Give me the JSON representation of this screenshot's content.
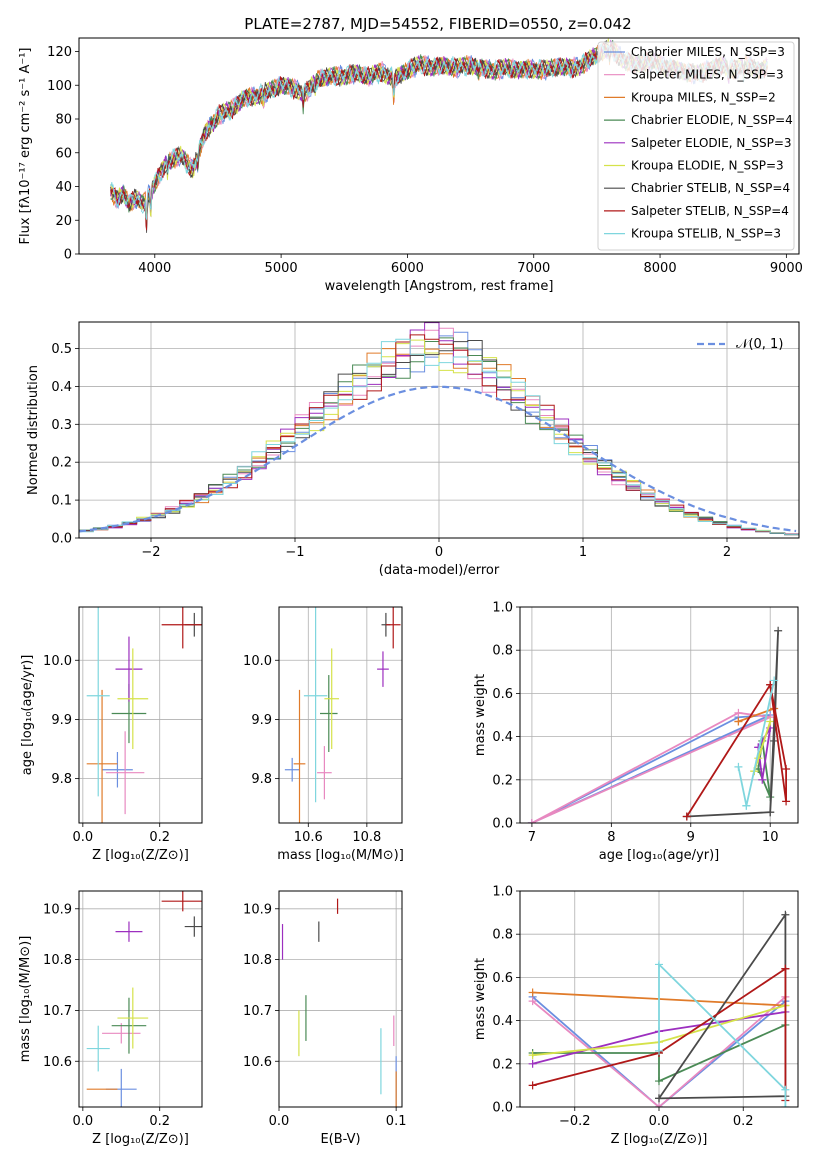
{
  "colors": {
    "chabrier_miles": "#6b8fe0",
    "salpeter_miles": "#e889c0",
    "kroupa_miles": "#e07b2a",
    "chabrier_elodie": "#4a8a55",
    "salpeter_elodie": "#9c2fbf",
    "kroupa_elodie": "#d5e24a",
    "chabrier_stelib": "#4a4a4a",
    "salpeter_stelib": "#b01818",
    "kroupa_stelib": "#7fd6de",
    "normal_curve": "#6b8fe0"
  },
  "chart_data": [
    {
      "id": "spectrum",
      "type": "line",
      "title": "PLATE=2787, MJD=54552, FIBERID=0550, z=0.042",
      "xlabel": "wavelength [Angstrom, rest frame]",
      "ylabel": "Flux [fλ10⁻¹⁷ erg cm⁻² s⁻¹ A⁻¹]",
      "xlim": [
        3400,
        9100
      ],
      "ylim": [
        0,
        128
      ],
      "xticks": [
        "4000",
        "5000",
        "6000",
        "7000",
        "8000",
        "9000"
      ],
      "yticks": [
        "0",
        "20",
        "40",
        "60",
        "80",
        "100",
        "120"
      ],
      "legend_position": "upper right",
      "legend": [
        "Chabrier MILES, N_SSP=3",
        "Salpeter MILES, N_SSP=3",
        "Kroupa MILES, N_SSP=2",
        "Chabrier ELODIE, N_SSP=4",
        "Salpeter ELODIE, N_SSP=3",
        "Kroupa ELODIE, N_SSP=3",
        "Chabrier STELIB, N_SSP=4",
        "Salpeter STELIB, N_SSP=4",
        "Kroupa STELIB, N_SSP=3"
      ],
      "continuum_x": [
        3650,
        3700,
        3750,
        3800,
        3850,
        3900,
        3950,
        4000,
        4100,
        4200,
        4300,
        4400,
        4500,
        4600,
        4700,
        4800,
        4900,
        5000,
        5100,
        5200,
        5300,
        5400,
        5500,
        5600,
        5700,
        5800,
        5900,
        6000,
        6100,
        6200,
        6300,
        6400,
        6500,
        6600,
        6700,
        6800,
        6900,
        7000,
        7100,
        7200,
        7300,
        7400,
        7500,
        7600,
        7700,
        7800,
        7900,
        8000,
        8100,
        8200,
        8300,
        8400,
        8500,
        8600,
        8700,
        8800,
        8850
      ],
      "continuum_y": [
        38,
        32,
        36,
        30,
        33,
        29,
        35,
        42,
        55,
        58,
        50,
        72,
        82,
        85,
        92,
        94,
        96,
        100,
        98,
        96,
        104,
        105,
        106,
        107,
        105,
        108,
        104,
        109,
        112,
        111,
        112,
        110,
        112,
        110,
        109,
        110,
        109,
        110,
        109,
        111,
        110,
        113,
        118,
        122,
        116,
        112,
        114,
        112,
        110,
        108,
        106,
        110,
        112,
        109,
        112,
        108,
        112
      ],
      "dropouts": {
        "Kroupa ELODIE": [
          3900,
          6780
        ],
        "Kroupa STELIB": [
          3930
        ],
        "Kroupa MILES": [
          7430
        ],
        "Salpeter STELIB": [
          7420
        ]
      }
    },
    {
      "id": "residuals",
      "type": "histogram",
      "xlabel": "(data-model)/error",
      "ylabel": "Normed distribution",
      "xlim": [
        -2.5,
        2.5
      ],
      "ylim": [
        0,
        0.57
      ],
      "xticks": [
        "−2",
        "−1",
        "0",
        "1",
        "2"
      ],
      "yticks": [
        "0.0",
        "0.1",
        "0.2",
        "0.3",
        "0.4",
        "0.5"
      ],
      "legend_position": "upper right",
      "legend": [
        "𝒩(0, 1)"
      ],
      "bin_width": 0.1,
      "normal_mean": 0,
      "normal_sigma": 1
    },
    {
      "id": "age_vs_z",
      "type": "scatter",
      "xlabel": "Z [log₁₀(Z/Z⊙)]",
      "ylabel": "age  [log₁₀(age/yr)]",
      "xlim": [
        -0.01,
        0.31
      ],
      "ylim": [
        9.725,
        10.09
      ],
      "xticks": [
        "0.0",
        "0.2"
      ],
      "yticks": [
        "9.8",
        "9.9",
        "10.0"
      ],
      "points": [
        {
          "x": 0.09,
          "y": 9.815,
          "x_err": 0.04,
          "y_err": 0.03,
          "color": "chabrier_miles"
        },
        {
          "x": 0.11,
          "y": 9.81,
          "x_err": 0.05,
          "y_err": 0.07,
          "color": "salpeter_miles"
        },
        {
          "x": 0.05,
          "y": 9.825,
          "x_err": 0.04,
          "y_err": 0.125,
          "color": "kroupa_miles"
        },
        {
          "x": 0.12,
          "y": 9.91,
          "x_err": 0.045,
          "y_err": 0.05,
          "color": "chabrier_elodie"
        },
        {
          "x": 0.12,
          "y": 9.985,
          "x_err": 0.035,
          "y_err": 0.055,
          "color": "salpeter_elodie"
        },
        {
          "x": 0.13,
          "y": 9.935,
          "x_err": 0.04,
          "y_err": 0.085,
          "color": "kroupa_elodie"
        },
        {
          "x": 0.29,
          "y": 10.06,
          "x_err": 0.025,
          "y_err": 0.02,
          "color": "chabrier_stelib"
        },
        {
          "x": 0.26,
          "y": 10.06,
          "x_err": 0.055,
          "y_err": 0.04,
          "color": "salpeter_stelib"
        },
        {
          "x": 0.04,
          "y": 9.94,
          "x_err": 0.03,
          "y_err": 0.17,
          "color": "kroupa_stelib"
        }
      ]
    },
    {
      "id": "age_vs_mass",
      "type": "scatter",
      "xlabel": "mass [log₁₀(M/M⊙)]",
      "ylabel": "",
      "xlim": [
        10.5,
        10.92
      ],
      "ylim": [
        9.725,
        10.09
      ],
      "xticks": [
        "10.6",
        "10.8"
      ],
      "yticks": [
        "9.8",
        "9.9",
        "10.0"
      ],
      "points": [
        {
          "x": 10.545,
          "y": 9.815,
          "x_err": 0.025,
          "y_err": 0.02,
          "color": "chabrier_miles"
        },
        {
          "x": 10.655,
          "y": 9.81,
          "x_err": 0.025,
          "y_err": 0.045,
          "color": "salpeter_miles"
        },
        {
          "x": 10.57,
          "y": 9.825,
          "x_err": 0.02,
          "y_err": 0.125,
          "color": "kroupa_miles"
        },
        {
          "x": 10.67,
          "y": 9.91,
          "x_err": 0.03,
          "y_err": 0.065,
          "color": "chabrier_elodie"
        },
        {
          "x": 10.855,
          "y": 9.985,
          "x_err": 0.02,
          "y_err": 0.03,
          "color": "salpeter_elodie"
        },
        {
          "x": 10.68,
          "y": 9.935,
          "x_err": 0.025,
          "y_err": 0.085,
          "color": "kroupa_elodie"
        },
        {
          "x": 10.865,
          "y": 10.06,
          "x_err": 0.015,
          "y_err": 0.02,
          "color": "chabrier_stelib"
        },
        {
          "x": 10.89,
          "y": 10.06,
          "x_err": 0.025,
          "y_err": 0.04,
          "color": "salpeter_stelib"
        },
        {
          "x": 10.625,
          "y": 9.94,
          "x_err": 0.04,
          "y_err": 0.18,
          "color": "kroupa_stelib"
        }
      ]
    },
    {
      "id": "weight_vs_age",
      "type": "line",
      "xlabel": "age  [log₁₀(age/yr)]",
      "ylabel": "mass weight",
      "xlim": [
        6.85,
        10.35
      ],
      "ylim": [
        0,
        1.0
      ],
      "xticks": [
        "7",
        "8",
        "9",
        "10"
      ],
      "yticks": [
        "0.0",
        "0.2",
        "0.4",
        "0.6",
        "0.8",
        "1.0"
      ],
      "series": [
        {
          "color": "chabrier_miles",
          "x": [
            7.0,
            9.6,
            10.0,
            7.0
          ],
          "y": [
            0.0,
            0.49,
            0.5,
            0.0
          ]
        },
        {
          "color": "salpeter_miles",
          "x": [
            7.0,
            9.6,
            10.0,
            7.0
          ],
          "y": [
            0.0,
            0.51,
            0.49,
            0.0
          ]
        },
        {
          "color": "kroupa_miles",
          "x": [
            9.6,
            10.05,
            9.6
          ],
          "y": [
            0.47,
            0.53,
            0.47
          ]
        },
        {
          "color": "chabrier_elodie",
          "x": [
            9.85,
            9.9,
            10.0,
            9.85
          ],
          "y": [
            0.25,
            0.38,
            0.12,
            0.25
          ]
        },
        {
          "color": "salpeter_elodie",
          "x": [
            9.85,
            10.0,
            9.9,
            9.85
          ],
          "y": [
            0.35,
            0.44,
            0.2,
            0.35
          ]
        },
        {
          "color": "kroupa_elodie",
          "x": [
            9.8,
            10.0,
            9.85,
            9.8
          ],
          "y": [
            0.24,
            0.47,
            0.3,
            0.24
          ]
        },
        {
          "color": "chabrier_stelib",
          "x": [
            8.95,
            10.0,
            10.1,
            10.05,
            10.0
          ],
          "y": [
            0.03,
            0.05,
            0.89,
            0.38,
            0.05
          ]
        },
        {
          "color": "salpeter_stelib",
          "x": [
            8.95,
            10.0,
            10.2,
            10.2,
            10.0
          ],
          "y": [
            0.03,
            0.64,
            0.25,
            0.1,
            0.64
          ]
        },
        {
          "color": "kroupa_stelib",
          "x": [
            9.6,
            9.7,
            10.05,
            9.7
          ],
          "y": [
            0.26,
            0.08,
            0.66,
            0.08
          ]
        }
      ]
    },
    {
      "id": "mass_vs_z",
      "type": "scatter",
      "xlabel": "Z [log₁₀(Z/Z⊙)]",
      "ylabel": "mass [log₁₀(M/M⊙)]",
      "xlim": [
        -0.01,
        0.31
      ],
      "ylim": [
        10.51,
        10.935
      ],
      "xticks": [
        "0.0",
        "0.2"
      ],
      "yticks": [
        "10.6",
        "10.7",
        "10.8",
        "10.9"
      ],
      "points": [
        {
          "x": 0.1,
          "y": 10.545,
          "x_err": 0.04,
          "y_err": 0.04,
          "color": "chabrier_miles"
        },
        {
          "x": 0.1,
          "y": 10.655,
          "x_err": 0.05,
          "y_err": 0.02,
          "color": "salpeter_miles"
        },
        {
          "x": 0.05,
          "y": 10.545,
          "x_err": 0.04,
          "y_err": 0.0,
          "color": "kroupa_miles"
        },
        {
          "x": 0.12,
          "y": 10.67,
          "x_err": 0.045,
          "y_err": 0.055,
          "color": "chabrier_elodie"
        },
        {
          "x": 0.12,
          "y": 10.855,
          "x_err": 0.035,
          "y_err": 0.02,
          "color": "salpeter_elodie"
        },
        {
          "x": 0.13,
          "y": 10.685,
          "x_err": 0.04,
          "y_err": 0.06,
          "color": "kroupa_elodie"
        },
        {
          "x": 0.29,
          "y": 10.865,
          "x_err": 0.025,
          "y_err": 0.02,
          "color": "chabrier_stelib"
        },
        {
          "x": 0.26,
          "y": 10.915,
          "x_err": 0.055,
          "y_err": 0.02,
          "color": "salpeter_stelib"
        },
        {
          "x": 0.04,
          "y": 10.625,
          "x_err": 0.03,
          "y_err": 0.045,
          "color": "kroupa_stelib"
        }
      ]
    },
    {
      "id": "mass_vs_ebv",
      "type": "scatter",
      "xlabel": "E(B-V)",
      "ylabel": "",
      "xlim": [
        0.0,
        0.105
      ],
      "ylim": [
        10.51,
        10.935
      ],
      "xticks": [
        "0.0",
        "0.1"
      ],
      "yticks": [
        "10.6",
        "10.7",
        "10.8",
        "10.9"
      ],
      "points": [
        {
          "x": 0.1,
          "y": 10.56,
          "x_err": 0,
          "y_err": 0.05,
          "color": "chabrier_miles"
        },
        {
          "x": 0.098,
          "y": 10.66,
          "x_err": 0,
          "y_err": 0.03,
          "color": "salpeter_miles"
        },
        {
          "x": 0.1,
          "y": 10.54,
          "x_err": 0,
          "y_err": 0.04,
          "color": "kroupa_miles"
        },
        {
          "x": 0.023,
          "y": 10.685,
          "x_err": 0,
          "y_err": 0.045,
          "color": "chabrier_elodie"
        },
        {
          "x": 0.003,
          "y": 10.835,
          "x_err": 0,
          "y_err": 0.035,
          "color": "salpeter_elodie"
        },
        {
          "x": 0.017,
          "y": 10.655,
          "x_err": 0,
          "y_err": 0.045,
          "color": "kroupa_elodie"
        },
        {
          "x": 0.034,
          "y": 10.855,
          "x_err": 0,
          "y_err": 0.02,
          "color": "chabrier_stelib"
        },
        {
          "x": 0.05,
          "y": 10.905,
          "x_err": 0,
          "y_err": 0.015,
          "color": "salpeter_stelib"
        },
        {
          "x": 0.087,
          "y": 10.6,
          "x_err": 0,
          "y_err": 0.065,
          "color": "kroupa_stelib"
        }
      ]
    },
    {
      "id": "weight_vs_z",
      "type": "line",
      "xlabel": "Z [log₁₀(Z/Z⊙)]",
      "ylabel": "mass weight",
      "xlim": [
        -0.33,
        0.33
      ],
      "ylim": [
        0,
        1.0
      ],
      "xticks": [
        "−0.2",
        "0.0",
        "0.2"
      ],
      "yticks": [
        "0.0",
        "0.2",
        "0.4",
        "0.6",
        "0.8",
        "1.0"
      ],
      "series": [
        {
          "color": "chabrier_miles",
          "x": [
            -0.3,
            0.0,
            0.3
          ],
          "y": [
            0.51,
            0.0,
            0.49
          ]
        },
        {
          "color": "salpeter_miles",
          "x": [
            -0.3,
            0.0,
            0.3
          ],
          "y": [
            0.49,
            0.0,
            0.51
          ]
        },
        {
          "color": "kroupa_miles",
          "x": [
            -0.3,
            0.3
          ],
          "y": [
            0.53,
            0.47
          ]
        },
        {
          "color": "chabrier_elodie",
          "x": [
            -0.3,
            0.0,
            0.0,
            0.3
          ],
          "y": [
            0.25,
            0.25,
            0.12,
            0.38
          ]
        },
        {
          "color": "salpeter_elodie",
          "x": [
            -0.3,
            0.0,
            0.3
          ],
          "y": [
            0.2,
            0.35,
            0.44
          ]
        },
        {
          "color": "kroupa_elodie",
          "x": [
            -0.3,
            0.0,
            0.3
          ],
          "y": [
            0.24,
            0.3,
            0.47
          ]
        },
        {
          "color": "chabrier_stelib",
          "x": [
            0.0,
            0.3,
            0.3,
            0.0
          ],
          "y": [
            0.04,
            0.89,
            0.05,
            0.04
          ]
        },
        {
          "color": "salpeter_stelib",
          "x": [
            -0.3,
            0.0,
            0.3,
            0.3,
            0.3
          ],
          "y": [
            0.1,
            0.25,
            0.64,
            0.03,
            0.64
          ]
        },
        {
          "color": "kroupa_stelib",
          "x": [
            0.0,
            0.0,
            0.3,
            0.3
          ],
          "y": [
            0.26,
            0.66,
            0.08,
            0.0
          ]
        }
      ]
    }
  ]
}
